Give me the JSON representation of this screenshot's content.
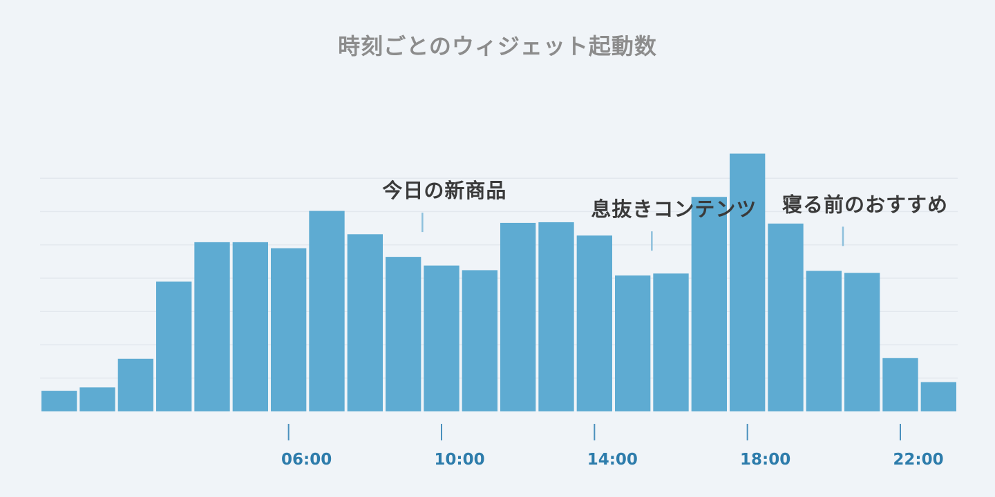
{
  "chart_data": {
    "type": "bar",
    "title": "時刻ごとのウィジェット起動数",
    "categories": [
      "00:00",
      "01:00",
      "02:00",
      "03:00",
      "04:00",
      "05:00",
      "06:00",
      "07:00",
      "08:00",
      "09:00",
      "10:00",
      "11:00",
      "12:00",
      "13:00",
      "14:00",
      "15:00",
      "16:00",
      "17:00",
      "18:00",
      "19:00",
      "20:00",
      "21:00",
      "22:00",
      "23:00"
    ],
    "x_tick_labels": [
      "06:00",
      "10:00",
      "14:00",
      "18:00",
      "22:00"
    ],
    "values": [
      31,
      36,
      79,
      195,
      254,
      254,
      245,
      301,
      266,
      232,
      219,
      212,
      283,
      284,
      264,
      204,
      207,
      322,
      387,
      282,
      211,
      208,
      80,
      44
    ],
    "ylim": [
      0,
      400
    ],
    "grid": true,
    "annotations": [
      {
        "category": "09:00",
        "label": "今日の新商品"
      },
      {
        "category": "15:00",
        "label": "息抜きコンテンツ"
      },
      {
        "category": "20:00",
        "label": "寝る前のおすすめ"
      }
    ],
    "colors": {
      "bar": "#5eabd2",
      "background": "#f0f4f8",
      "tick_label": "#2d7cab",
      "title": "#8c8c8c",
      "annotation": "#3a3a3a"
    }
  }
}
